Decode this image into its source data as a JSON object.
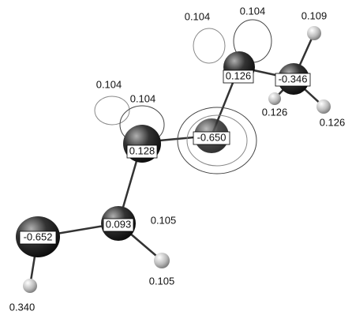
{
  "atom_labels": [
    "0.104",
    "0.104",
    "0.109",
    "0.126",
    "-0.346",
    "0.126",
    "0.126",
    "0.104",
    "0.104",
    "0.128",
    "-0.650",
    "0.093",
    "0.105",
    "-0.652",
    "0.105",
    "0.340"
  ]
}
